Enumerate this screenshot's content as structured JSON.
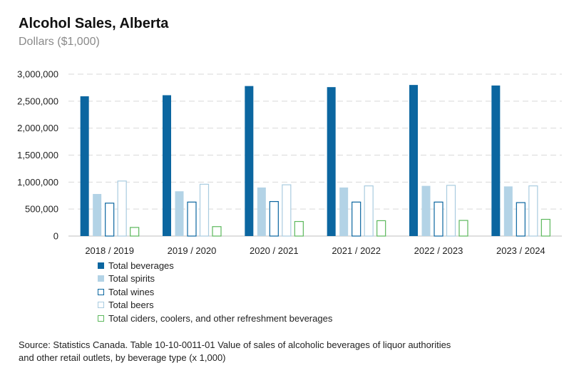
{
  "header": {
    "title": "Alcohol Sales, Alberta",
    "subtitle": "Dollars ($1,000)"
  },
  "source": {
    "line1": "Source: Statistics Canada. Table 10-10-0011-01  Value of sales of alcoholic beverages of liquor authorities",
    "line2": "and other retail outlets, by beverage type (x 1,000)"
  },
  "colors": {
    "total_beverages": "#0b66a0",
    "total_spirits": "#b3d3e6",
    "total_wines": "#0b66a0",
    "total_beers": "#a9cce0",
    "total_ciders": "#5cb85c",
    "grid": "#d9d9d9",
    "axis": "#bfbfbf"
  },
  "chart_data": {
    "type": "bar",
    "title": "Alcohol Sales, Alberta",
    "subtitle": "Dollars ($1,000)",
    "xlabel": "",
    "ylabel": "",
    "ylim": [
      0,
      3000000
    ],
    "yticks": [
      0,
      500000,
      1000000,
      1500000,
      2000000,
      2500000,
      3000000
    ],
    "ytick_labels": [
      "0",
      "500,000",
      "1,000,000",
      "1,500,000",
      "2,000,000",
      "2,500,000",
      "3,000,000"
    ],
    "grid": true,
    "legend_position": "bottom-left",
    "categories": [
      "2018 / 2019",
      "2019 / 2020",
      "2020 / 2021",
      "2021 / 2022",
      "2022 / 2023",
      "2023 / 2024"
    ],
    "series": [
      {
        "name": "Total beverages",
        "style": "filled-dark",
        "values": [
          2590000,
          2610000,
          2780000,
          2760000,
          2800000,
          2790000
        ]
      },
      {
        "name": "Total spirits",
        "style": "filled-light",
        "values": [
          780000,
          830000,
          900000,
          900000,
          930000,
          920000
        ]
      },
      {
        "name": "Total wines",
        "style": "outline-dark",
        "values": [
          610000,
          630000,
          640000,
          630000,
          630000,
          620000
        ]
      },
      {
        "name": "Total beers",
        "style": "outline-light",
        "values": [
          1020000,
          960000,
          950000,
          930000,
          940000,
          930000
        ]
      },
      {
        "name": "Total ciders, coolers, and other refreshment beverages",
        "style": "outline-green",
        "values": [
          160000,
          175000,
          270000,
          285000,
          290000,
          310000
        ]
      }
    ]
  }
}
